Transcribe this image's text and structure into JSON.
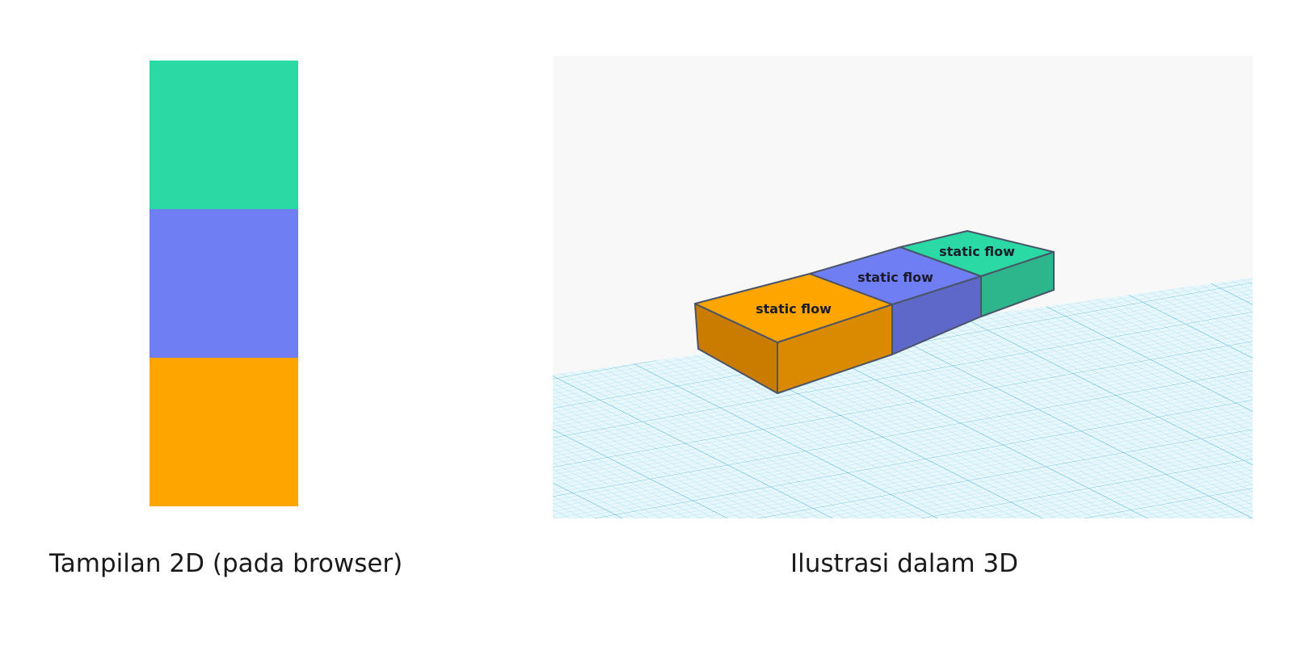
{
  "colors": {
    "green": "#2bd9a5",
    "blue": "#6f7ef2",
    "orange": "#ffa500",
    "grid_bg": "#e8f7fc",
    "grid_line": "#6cc9e6",
    "scene_bg": "#f8f8f8"
  },
  "view2d": {
    "blocks": [
      "green",
      "blue",
      "orange"
    ],
    "caption": "Tampilan 2D (pada browser)"
  },
  "view3d": {
    "boxes": [
      {
        "label": "static flow",
        "color": "orange"
      },
      {
        "label": "static flow",
        "color": "blue"
      },
      {
        "label": "static flow",
        "color": "green"
      }
    ],
    "caption": "Ilustrasi dalam 3D"
  }
}
